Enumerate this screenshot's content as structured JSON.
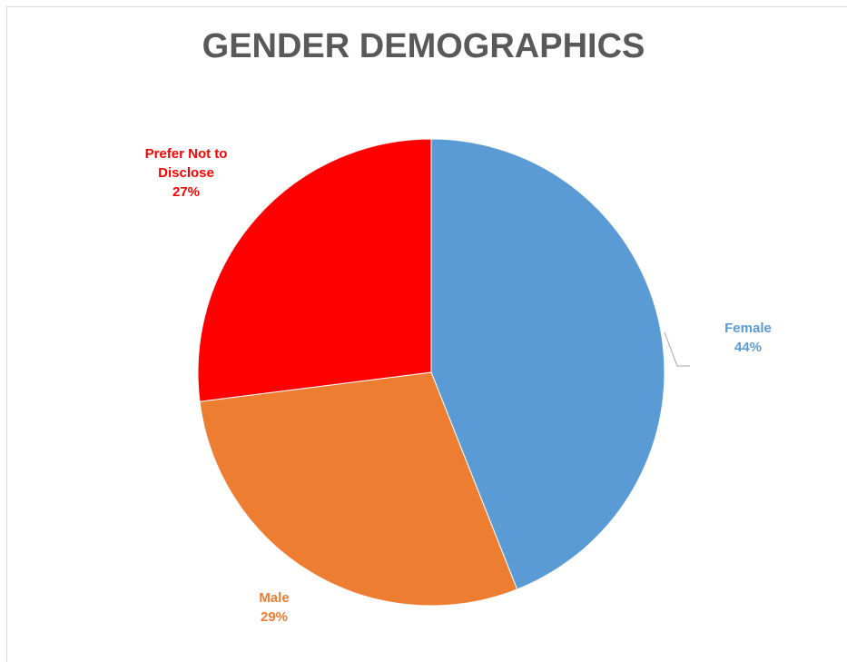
{
  "chart_data": {
    "type": "pie",
    "title": "GENDER DEMOGRAPHICS",
    "slices": [
      {
        "label": "Female",
        "value": 44,
        "percent_label": "44%",
        "color": "#5b9bd5"
      },
      {
        "label": "Male",
        "value": 29,
        "percent_label": "29%",
        "color": "#ed7d31"
      },
      {
        "label": "Prefer Not to Disclose",
        "label_lines": [
          "Prefer Not to",
          "Disclose"
        ],
        "value": 27,
        "percent_label": "27%",
        "color": "#ff0000"
      }
    ],
    "legend": "none"
  }
}
